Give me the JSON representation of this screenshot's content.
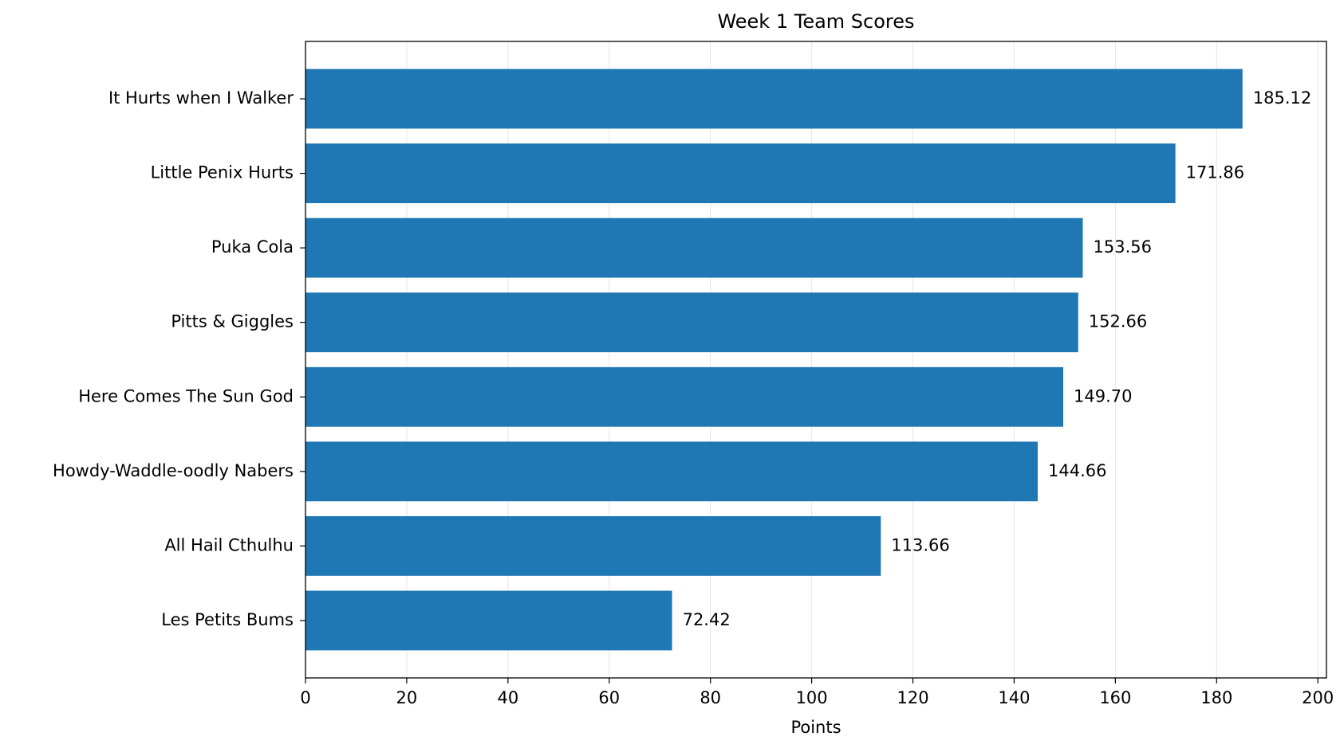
{
  "chart_data": {
    "type": "barh",
    "title": "Week 1 Team Scores",
    "x_label": "Points",
    "categories": [
      "It Hurts when I Walker",
      "Little Penix Hurts",
      "Puka Cola",
      "Pitts & Giggles",
      "Here Comes The Sun God",
      "Howdy-Waddle-oodly Nabers",
      "All Hail Cthulhu",
      "Les Petits Bums"
    ],
    "values": [
      185.12,
      171.86,
      153.56,
      152.66,
      149.7,
      144.66,
      113.66,
      72.42
    ],
    "value_labels": [
      "185.12",
      "171.86",
      "153.56",
      "152.66",
      "149.70",
      "144.66",
      "113.66",
      "72.42"
    ],
    "color": "#1f77b4",
    "xlim": [
      0,
      201.7
    ],
    "xticks": [
      0,
      20,
      40,
      60,
      80,
      100,
      120,
      140,
      160,
      180,
      200
    ],
    "grid": true
  }
}
